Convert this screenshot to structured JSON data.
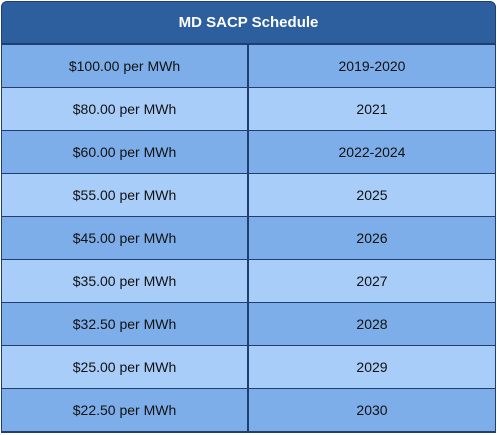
{
  "table": {
    "title": "MD SACP Schedule",
    "rows": [
      {
        "price": "$100.00 per MWh",
        "years": "2019-2020"
      },
      {
        "price": "$80.00 per MWh",
        "years": "2021"
      },
      {
        "price": "$60.00 per MWh",
        "years": "2022-2024"
      },
      {
        "price": "$55.00 per MWh",
        "years": "2025"
      },
      {
        "price": "$45.00 per MWh",
        "years": "2026"
      },
      {
        "price": "$35.00 per MWh",
        "years": "2027"
      },
      {
        "price": "$32.50 per MWh",
        "years": "2028"
      },
      {
        "price": "$25.00 per MWh",
        "years": "2029"
      },
      {
        "price": "$22.50 per MWh",
        "years": "2030"
      }
    ]
  },
  "colors": {
    "header_bg": "#2d5f9e",
    "border": "#1f3f6e",
    "row_dark": "#7daee9",
    "row_light": "#a8cdf9"
  }
}
